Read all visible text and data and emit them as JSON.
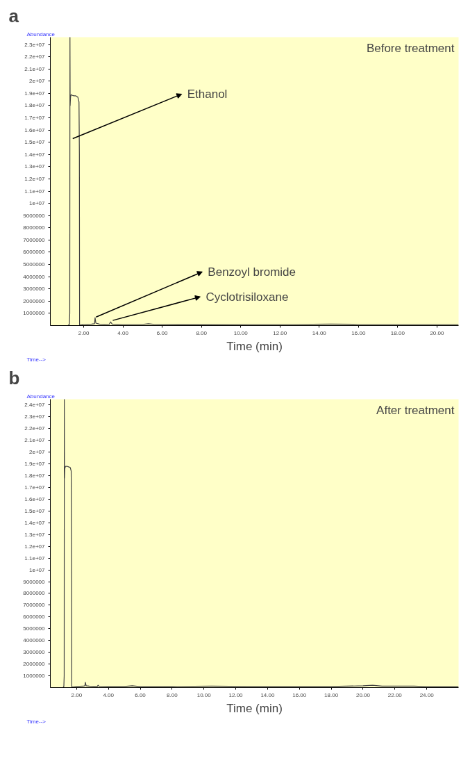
{
  "chart_data": [
    {
      "type": "line",
      "title": "a",
      "xlabel": "Time (min)",
      "ylabel": "Abundance",
      "annotations": [
        "Before treatment",
        "Time-->",
        {
          "text": "Ethanol",
          "x": 1.44,
          "y": 15300000
        },
        {
          "text": "Benzoyl bromide",
          "x": 2.63,
          "y": 700000
        },
        {
          "text": "Cyclotrisiloxane",
          "x": 3.48,
          "y": 420000
        }
      ],
      "xlim": [
        0.3,
        21.1
      ],
      "ylim": [
        0,
        23600000
      ],
      "xticks": [
        {
          "value": 2,
          "label": "2.00"
        },
        {
          "value": 4,
          "label": "4.00"
        },
        {
          "value": 6,
          "label": "6.00"
        },
        {
          "value": 8,
          "label": "8.00"
        },
        {
          "value": 10,
          "label": "10.00"
        },
        {
          "value": 12,
          "label": "12.00"
        },
        {
          "value": 14,
          "label": "14.00"
        },
        {
          "value": 16,
          "label": "16.00"
        },
        {
          "value": 18,
          "label": "18.00"
        },
        {
          "value": 20,
          "label": "20.00"
        }
      ],
      "yticks": [
        1000000,
        2000000,
        3000000,
        4000000,
        5000000,
        6000000,
        7000000,
        8000000,
        9000000,
        {
          "value": 10000000,
          "label": "1e+07"
        },
        {
          "value": 11000000,
          "label": "1.1e+07"
        },
        {
          "value": 12000000,
          "label": "1.2e+07"
        },
        {
          "value": 13000000,
          "label": "1.3e+07"
        },
        {
          "value": 14000000,
          "label": "1.4e+07"
        },
        {
          "value": 15000000,
          "label": "1.5e+07"
        },
        {
          "value": 16000000,
          "label": "1.6e+07"
        },
        {
          "value": 17000000,
          "label": "1.7e+07"
        },
        {
          "value": 18000000,
          "label": "1.8e+07"
        },
        {
          "value": 19000000,
          "label": "1.9e+07"
        },
        {
          "value": 20000000,
          "label": "2e+07"
        },
        {
          "value": 21000000,
          "label": "2.1e+07"
        },
        {
          "value": 22000000,
          "label": "2.2e+07"
        },
        {
          "value": 23000000,
          "label": "2.3e+07"
        }
      ],
      "grid": false,
      "series": [
        {
          "color": "#404040",
          "x": [
            0.3,
            1.2,
            1.27,
            1.29,
            1.3,
            1.31,
            1.33,
            1.36,
            1.4,
            1.5,
            1.6,
            1.7,
            1.76,
            1.78,
            1.79,
            1.9,
            2.0,
            2.4,
            2.55,
            2.58,
            2.62,
            2.8,
            3.3,
            3.37,
            3.45,
            4,
            5,
            5.3,
            5.6,
            8,
            10.5,
            12.7,
            14.6,
            16,
            18,
            20,
            21.1
          ],
          "values": [
            0,
            0,
            100000,
            1000000,
            23600000,
            18000000,
            18700000,
            18900000,
            18850000,
            18800000,
            18800000,
            18700000,
            18300000,
            14000000,
            50000,
            60000,
            100000,
            120000,
            150000,
            650000,
            200000,
            120000,
            100000,
            300000,
            120000,
            100000,
            100000,
            150000,
            100000,
            80000,
            100000,
            100000,
            120000,
            100000,
            100000,
            100000,
            100000
          ]
        }
      ]
    },
    {
      "type": "line",
      "title": "b",
      "xlabel": "Time (min)",
      "ylabel": "Abundance",
      "annotations": [
        "After treatment",
        "Time-->"
      ],
      "xlim": [
        0.35,
        26.0
      ],
      "ylim": [
        0,
        24500000
      ],
      "xticks": [
        {
          "value": 2,
          "label": "2.00"
        },
        {
          "value": 4,
          "label": "4.00"
        },
        {
          "value": 6,
          "label": "6.00"
        },
        {
          "value": 8,
          "label": "8.00"
        },
        {
          "value": 10,
          "label": "10.00"
        },
        {
          "value": 12,
          "label": "12.00"
        },
        {
          "value": 14,
          "label": "14.00"
        },
        {
          "value": 16,
          "label": "16.00"
        },
        {
          "value": 18,
          "label": "18.00"
        },
        {
          "value": 20,
          "label": "20.00"
        },
        {
          "value": 22,
          "label": "22.00"
        },
        {
          "value": 24,
          "label": "24.00"
        }
      ],
      "yticks": [
        1000000,
        2000000,
        3000000,
        4000000,
        5000000,
        6000000,
        7000000,
        8000000,
        9000000,
        {
          "value": 10000000,
          "label": "1e+07"
        },
        {
          "value": 11000000,
          "label": "1.1e+07"
        },
        {
          "value": 12000000,
          "label": "1.2e+07"
        },
        {
          "value": 13000000,
          "label": "1.3e+07"
        },
        {
          "value": 14000000,
          "label": "1.4e+07"
        },
        {
          "value": 15000000,
          "label": "1.5e+07"
        },
        {
          "value": 16000000,
          "label": "1.6e+07"
        },
        {
          "value": 17000000,
          "label": "1.7e+07"
        },
        {
          "value": 18000000,
          "label": "1.8e+07"
        },
        {
          "value": 19000000,
          "label": "1.9e+07"
        },
        {
          "value": 20000000,
          "label": "2e+07"
        },
        {
          "value": 21000000,
          "label": "2.1e+07"
        },
        {
          "value": 22000000,
          "label": "2.2e+07"
        },
        {
          "value": 23000000,
          "label": "2.3e+07"
        },
        {
          "value": 24000000,
          "label": "2.4e+07"
        }
      ],
      "grid": false,
      "series": [
        {
          "color": "#404040",
          "x": [
            0.35,
            1.15,
            1.2,
            1.22,
            1.23,
            1.24,
            1.26,
            1.3,
            1.4,
            1.5,
            1.6,
            1.66,
            1.69,
            1.7,
            1.8,
            2.0,
            2.4,
            2.52,
            2.55,
            2.6,
            2.8,
            3.3,
            3.35,
            3.42,
            4,
            5,
            5.5,
            5.7,
            6,
            8,
            10.5,
            12.7,
            15,
            18,
            20,
            20.6,
            21.2,
            23.2,
            24,
            26.0
          ],
          "values": [
            0,
            0,
            100000,
            1000000,
            24500000,
            17800000,
            18600000,
            18800000,
            18800000,
            18750000,
            18700000,
            18400000,
            9000000,
            50000,
            60000,
            100000,
            120000,
            150000,
            450000,
            150000,
            120000,
            100000,
            200000,
            110000,
            100000,
            100000,
            150000,
            120000,
            80000,
            100000,
            120000,
            100000,
            100000,
            100000,
            150000,
            200000,
            120000,
            120000,
            80000,
            80000
          ]
        }
      ]
    }
  ]
}
